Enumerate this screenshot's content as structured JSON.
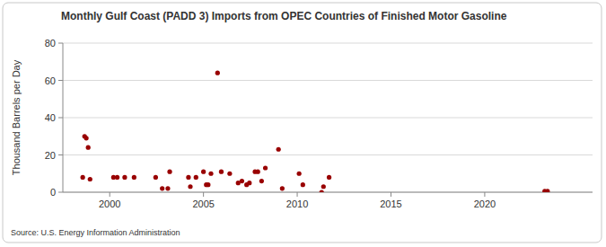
{
  "chart_data": {
    "type": "scatter",
    "title": "Monthly Gulf Coast (PADD 3) Imports from OPEC Countries of Finished Motor Gasoline",
    "y_label": "Thousand Barrels per Day",
    "source": "Source: U.S. Energy Information Administration",
    "x": [
      1998.56,
      1998.66,
      1998.75,
      1998.85,
      1998.95,
      2000.2,
      2000.4,
      2000.8,
      2001.3,
      2002.45,
      2002.8,
      2003.1,
      2003.2,
      2004.2,
      2004.3,
      2004.6,
      2005.0,
      2005.15,
      2005.25,
      2005.4,
      2005.75,
      2005.95,
      2006.4,
      2006.85,
      2007.05,
      2007.3,
      2007.45,
      2007.75,
      2007.9,
      2008.1,
      2008.3,
      2009.0,
      2009.2,
      2010.1,
      2010.3,
      2011.3,
      2011.4,
      2011.7,
      2023.2,
      2023.35
    ],
    "values": [
      8,
      30,
      29,
      24,
      7,
      8,
      8,
      8,
      8,
      8,
      2,
      2,
      11,
      8,
      3,
      8,
      11,
      4,
      4,
      10,
      64,
      11,
      10,
      5,
      6,
      4,
      5,
      11,
      11,
      6,
      13,
      23,
      2,
      10,
      4,
      0,
      3,
      8,
      0.5,
      0.5
    ],
    "color": "#990000",
    "marker": "circle",
    "xlim": [
      1997.5,
      2025.75
    ],
    "xticks": [
      2000,
      2005,
      2010,
      2015,
      2020
    ],
    "ylim": [
      0,
      80
    ],
    "yticks": [
      0,
      20,
      40,
      60,
      80
    ],
    "grid": true
  }
}
